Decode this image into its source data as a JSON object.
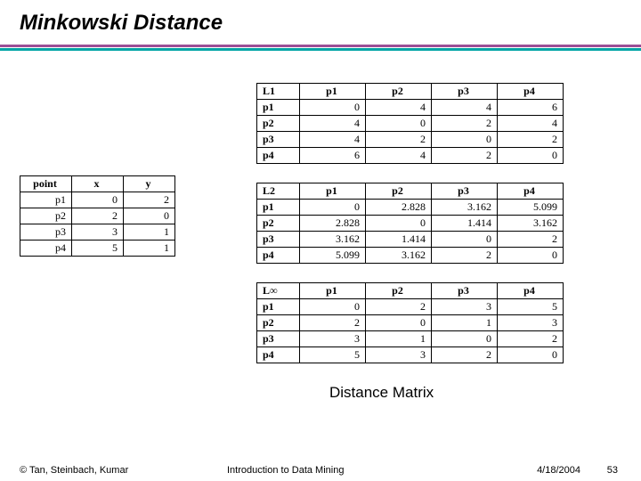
{
  "title": "Minkowski Distance",
  "caption": "Distance Matrix",
  "footer": {
    "left": "© Tan, Steinbach, Kumar",
    "center": "Introduction to Data Mining",
    "date": "4/18/2004",
    "page": "53"
  },
  "points_table": {
    "columns": [
      "point",
      "x",
      "y"
    ],
    "rows": [
      [
        "p1",
        "0",
        "2"
      ],
      [
        "p2",
        "2",
        "0"
      ],
      [
        "p3",
        "3",
        "1"
      ],
      [
        "p4",
        "5",
        "1"
      ]
    ]
  },
  "l1_table": {
    "header": [
      "L1",
      "p1",
      "p2",
      "p3",
      "p4"
    ],
    "rows": [
      [
        "p1",
        "0",
        "4",
        "4",
        "6"
      ],
      [
        "p2",
        "4",
        "0",
        "2",
        "4"
      ],
      [
        "p3",
        "4",
        "2",
        "0",
        "2"
      ],
      [
        "p4",
        "6",
        "4",
        "2",
        "0"
      ]
    ]
  },
  "l2_table": {
    "header": [
      "L2",
      "p1",
      "p2",
      "p3",
      "p4"
    ],
    "rows": [
      [
        "p1",
        "0",
        "2.828",
        "3.162",
        "5.099"
      ],
      [
        "p2",
        "2.828",
        "0",
        "1.414",
        "3.162"
      ],
      [
        "p3",
        "3.162",
        "1.414",
        "0",
        "2"
      ],
      [
        "p4",
        "5.099",
        "3.162",
        "2",
        "0"
      ]
    ]
  },
  "linf_table": {
    "header": [
      "L∞",
      "p1",
      "p2",
      "p3",
      "p4"
    ],
    "rows": [
      [
        "p1",
        "0",
        "2",
        "3",
        "5"
      ],
      [
        "p2",
        "2",
        "0",
        "1",
        "3"
      ],
      [
        "p3",
        "3",
        "1",
        "0",
        "2"
      ],
      [
        "p4",
        "5",
        "3",
        "2",
        "0"
      ]
    ]
  },
  "colors": {
    "rule_top": "#9b4f96",
    "rule_bottom": "#00a4a6"
  }
}
